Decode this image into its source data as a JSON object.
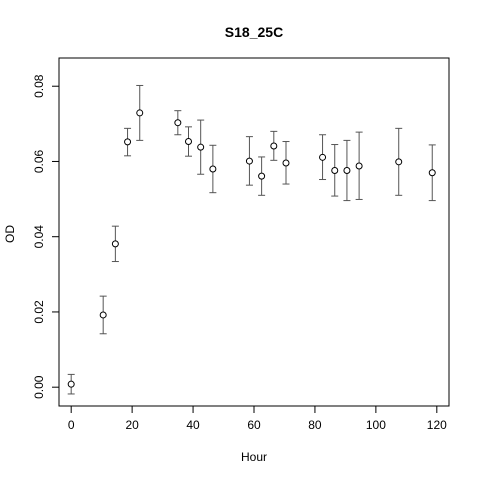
{
  "chart_data": {
    "type": "scatter",
    "title": "S18_25C",
    "xlabel": "Hour",
    "ylabel": "OD",
    "xlim": [
      -4,
      124
    ],
    "ylim": [
      -0.005,
      0.0875
    ],
    "xticks": [
      0,
      20,
      40,
      60,
      80,
      100,
      120
    ],
    "yticks": [
      0.0,
      0.02,
      0.04,
      0.06,
      0.08
    ],
    "ytick_labels": [
      "0.00",
      "0.02",
      "0.04",
      "0.06",
      "0.08"
    ],
    "grid": false,
    "legend": "none",
    "series": [
      {
        "marker": "open-circle",
        "error_bars": true,
        "points": [
          {
            "x": 0,
            "y": 0.0008,
            "lo": -0.0018,
            "hi": 0.0034
          },
          {
            "x": 10.5,
            "y": 0.0192,
            "lo": 0.0142,
            "hi": 0.0242
          },
          {
            "x": 14.5,
            "y": 0.0381,
            "lo": 0.0334,
            "hi": 0.0428
          },
          {
            "x": 18.5,
            "y": 0.0652,
            "lo": 0.0615,
            "hi": 0.0688
          },
          {
            "x": 22.5,
            "y": 0.0729,
            "lo": 0.0656,
            "hi": 0.0802
          },
          {
            "x": 35,
            "y": 0.0703,
            "lo": 0.0671,
            "hi": 0.0735
          },
          {
            "x": 38.5,
            "y": 0.0653,
            "lo": 0.0614,
            "hi": 0.0692
          },
          {
            "x": 42.5,
            "y": 0.0638,
            "lo": 0.0566,
            "hi": 0.071
          },
          {
            "x": 46.5,
            "y": 0.058,
            "lo": 0.0517,
            "hi": 0.0643
          },
          {
            "x": 58.5,
            "y": 0.0601,
            "lo": 0.0537,
            "hi": 0.0666
          },
          {
            "x": 62.5,
            "y": 0.0561,
            "lo": 0.051,
            "hi": 0.0612
          },
          {
            "x": 66.5,
            "y": 0.0641,
            "lo": 0.0603,
            "hi": 0.068
          },
          {
            "x": 70.5,
            "y": 0.0596,
            "lo": 0.054,
            "hi": 0.0653
          },
          {
            "x": 82.5,
            "y": 0.0611,
            "lo": 0.0552,
            "hi": 0.0671
          },
          {
            "x": 86.5,
            "y": 0.0576,
            "lo": 0.0508,
            "hi": 0.0645
          },
          {
            "x": 90.5,
            "y": 0.0576,
            "lo": 0.0496,
            "hi": 0.0656
          },
          {
            "x": 94.5,
            "y": 0.0588,
            "lo": 0.0499,
            "hi": 0.0678
          },
          {
            "x": 107.5,
            "y": 0.0599,
            "lo": 0.051,
            "hi": 0.0688
          },
          {
            "x": 118.5,
            "y": 0.057,
            "lo": 0.0496,
            "hi": 0.0644
          }
        ]
      }
    ]
  }
}
